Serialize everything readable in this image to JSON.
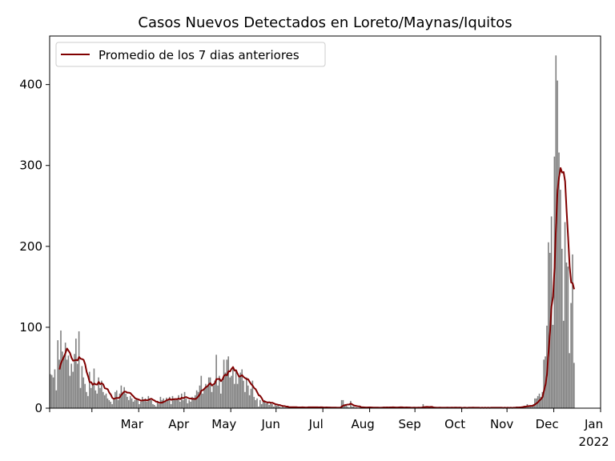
{
  "chart_data": {
    "type": "bar",
    "title": "Casos Nuevos Detectados en Loreto/Maynas/Iquitos",
    "xlabel": "",
    "ylabel": "",
    "x_start": "2021-02-01",
    "x_end": "2022-01-31",
    "ylim": [
      0,
      460
    ],
    "yticks": [
      0,
      100,
      200,
      300,
      400
    ],
    "xticks": [
      {
        "date": "2021-03-01",
        "label": "Mar"
      },
      {
        "date": "2021-04-01",
        "label": "Apr"
      },
      {
        "date": "2021-05-01",
        "label": "May"
      },
      {
        "date": "2021-06-01",
        "label": "Jun"
      },
      {
        "date": "2021-07-01",
        "label": "Jul"
      },
      {
        "date": "2021-08-01",
        "label": "Aug"
      },
      {
        "date": "2021-09-01",
        "label": "Sep"
      },
      {
        "date": "2021-10-01",
        "label": "Oct"
      },
      {
        "date": "2021-11-01",
        "label": "Nov"
      },
      {
        "date": "2021-12-01",
        "label": "Dec"
      },
      {
        "date": "2022-01-01",
        "label": "Jan",
        "sublabel": "2022"
      }
    ],
    "grid": false,
    "legend_position": "top-left",
    "bar_color": "#808080",
    "line_color": "#800000",
    "series": [
      {
        "name": "Promedio de los 7 dias anteriores",
        "type": "line",
        "smoothing_window": 7
      }
    ],
    "daily_cases": [
      42,
      41,
      38,
      48,
      22,
      84,
      60,
      96,
      70,
      65,
      81,
      60,
      65,
      40,
      55,
      45,
      67,
      86,
      55,
      95,
      25,
      52,
      38,
      30,
      20,
      15,
      45,
      25,
      30,
      49,
      22,
      18,
      38,
      25,
      34,
      20,
      16,
      18,
      12,
      10,
      8,
      5,
      12,
      20,
      22,
      10,
      18,
      28,
      20,
      26,
      18,
      14,
      10,
      15,
      12,
      8,
      10,
      12,
      10,
      5,
      8,
      14,
      10,
      12,
      8,
      15,
      12,
      10,
      5,
      4,
      2,
      8,
      5,
      14,
      10,
      12,
      8,
      13,
      10,
      14,
      5,
      15,
      12,
      10,
      12,
      16,
      8,
      18,
      10,
      20,
      12,
      6,
      10,
      8,
      14,
      12,
      16,
      22,
      20,
      28,
      40,
      18,
      24,
      30,
      28,
      38,
      38,
      20,
      28,
      34,
      66,
      28,
      40,
      18,
      34,
      60,
      44,
      60,
      64,
      38,
      40,
      50,
      30,
      46,
      30,
      38,
      44,
      48,
      34,
      20,
      38,
      28,
      16,
      24,
      34,
      14,
      10,
      12,
      2,
      10,
      5,
      8,
      10,
      6,
      8,
      4,
      6,
      5,
      2,
      4,
      3,
      5,
      2,
      1,
      2,
      1,
      1,
      2,
      1,
      1,
      1,
      2,
      1,
      1,
      0,
      1,
      1,
      2,
      1,
      0,
      1,
      2,
      1,
      1,
      2,
      1,
      0,
      1,
      1,
      2,
      1,
      0,
      1,
      1,
      0,
      1,
      1,
      1,
      0,
      1,
      0,
      0,
      1,
      10,
      10,
      4,
      4,
      2,
      1,
      9,
      2,
      2,
      1,
      1,
      0,
      1,
      1,
      2,
      1,
      0,
      1,
      1,
      1,
      0,
      1,
      1,
      0,
      1,
      0,
      1,
      1,
      2,
      1,
      1,
      0,
      1,
      1,
      2,
      1,
      0,
      1,
      1,
      2,
      1,
      0,
      1,
      1,
      0,
      1,
      0,
      1,
      1,
      0,
      1,
      1,
      0,
      1,
      5,
      2,
      1,
      1,
      0,
      1,
      1,
      0,
      1,
      0,
      1,
      1,
      0,
      1,
      0,
      1,
      1,
      0,
      1,
      1,
      0,
      1,
      1,
      0,
      1,
      0,
      0,
      1,
      1,
      0,
      1,
      1,
      0,
      1,
      0,
      1,
      0,
      1,
      0,
      1,
      0,
      1,
      0,
      1,
      0,
      1,
      1,
      0,
      1,
      0,
      1,
      0,
      1,
      0,
      1,
      0,
      1,
      0,
      1,
      0,
      1,
      1,
      2,
      1,
      1,
      2,
      2,
      3,
      3,
      5,
      2,
      3,
      2,
      5,
      12,
      12,
      15,
      18,
      14,
      20,
      60,
      64,
      102,
      205,
      192,
      237,
      103,
      311,
      436,
      405,
      316,
      270,
      197,
      108,
      230,
      180,
      175,
      68,
      130,
      190,
      56
    ]
  }
}
